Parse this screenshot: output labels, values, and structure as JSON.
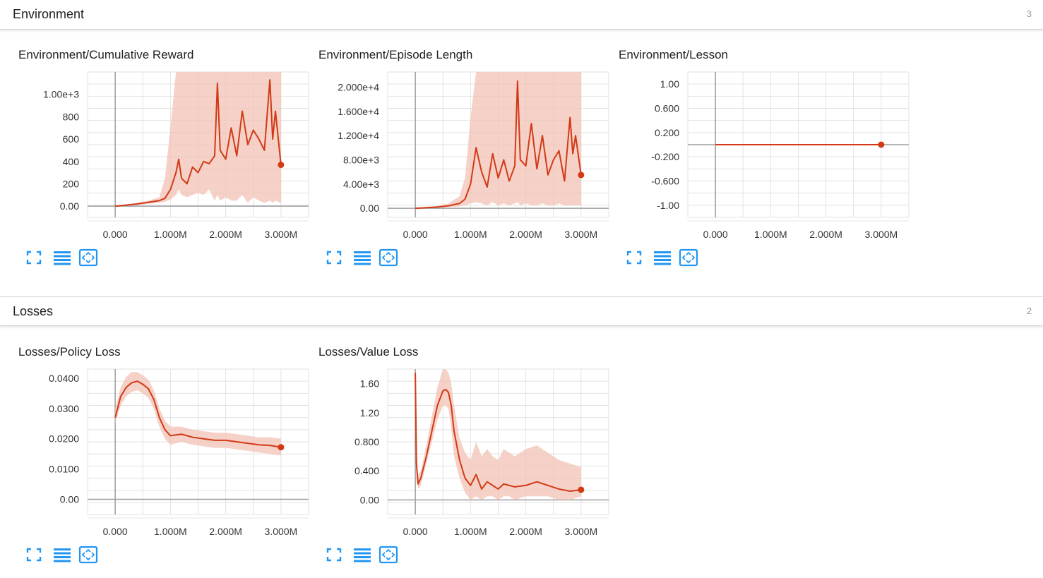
{
  "sections": [
    {
      "title": "Environment",
      "count": "3"
    },
    {
      "title": "Losses",
      "count": "2"
    }
  ],
  "colors": {
    "line": "#d23a16",
    "band": "#f2c2b4",
    "grid": "#e2e2e2",
    "axis": "#9e9e9e",
    "icon": "#2196f3"
  },
  "toolbar_icons": [
    "fullscreen-icon",
    "toggle-y-axis-log-icon",
    "fit-domain-icon"
  ],
  "cards": [
    {
      "title": "Environment/Cumulative Reward"
    },
    {
      "title": "Environment/Episode Length"
    },
    {
      "title": "Environment/Lesson"
    },
    {
      "title": "Losses/Policy Loss"
    },
    {
      "title": "Losses/Value Loss"
    }
  ],
  "chart_data": [
    {
      "type": "line",
      "title": "Environment/Cumulative Reward",
      "x_ticks": [
        "0.000",
        "1.000M",
        "2.000M",
        "3.000M"
      ],
      "y_ticks": [
        "0.00",
        "200",
        "400",
        "600",
        "800",
        "1.00e+3"
      ],
      "xlim": [
        -500000,
        3500000
      ],
      "ylim": [
        -100,
        1200
      ],
      "x": [
        0,
        200000,
        400000,
        600000,
        800000,
        900000,
        1000000,
        1100000,
        1150000,
        1200000,
        1300000,
        1400000,
        1500000,
        1600000,
        1700000,
        1800000,
        1850000,
        1900000,
        2000000,
        2100000,
        2200000,
        2300000,
        2400000,
        2500000,
        2600000,
        2700000,
        2800000,
        2850000,
        2900000,
        3000000
      ],
      "y": [
        0,
        10,
        20,
        35,
        50,
        70,
        150,
        300,
        420,
        250,
        200,
        350,
        300,
        400,
        380,
        450,
        1100,
        500,
        420,
        700,
        450,
        850,
        550,
        680,
        600,
        500,
        1130,
        600,
        850,
        370
      ],
      "upper": [
        0,
        15,
        30,
        50,
        80,
        250,
        700,
        1200,
        1200,
        1200,
        1200,
        1200,
        1200,
        1200,
        1200,
        1200,
        1200,
        1200,
        1200,
        1200,
        1200,
        1200,
        1200,
        1200,
        1200,
        1200,
        1200,
        1200,
        1200,
        1200
      ],
      "lower": [
        0,
        5,
        10,
        20,
        30,
        40,
        60,
        100,
        150,
        100,
        80,
        100,
        120,
        100,
        150,
        50,
        100,
        50,
        80,
        50,
        50,
        100,
        30,
        80,
        50,
        30,
        50,
        30,
        50,
        30
      ],
      "last_point": {
        "x": 3000000,
        "y": 370
      }
    },
    {
      "type": "line",
      "title": "Environment/Episode Length",
      "x_ticks": [
        "0.000",
        "1.000M",
        "2.000M",
        "3.000M"
      ],
      "y_ticks": [
        "0.00",
        "4.00e+3",
        "8.00e+3",
        "1.200e+4",
        "1.600e+4",
        "2.000e+4"
      ],
      "xlim": [
        -500000,
        3500000
      ],
      "ylim": [
        -1500,
        22500
      ],
      "x": [
        0,
        200000,
        400000,
        600000,
        800000,
        900000,
        1000000,
        1100000,
        1200000,
        1300000,
        1400000,
        1500000,
        1600000,
        1700000,
        1800000,
        1850000,
        1900000,
        2000000,
        2100000,
        2200000,
        2300000,
        2400000,
        2500000,
        2600000,
        2700000,
        2800000,
        2850000,
        2900000,
        3000000
      ],
      "y": [
        0,
        100,
        200,
        400,
        800,
        1500,
        4000,
        10000,
        6000,
        3500,
        9000,
        5000,
        8000,
        4500,
        7000,
        21000,
        8000,
        7000,
        14000,
        6500,
        12000,
        5500,
        8000,
        9500,
        4500,
        15000,
        9000,
        12000,
        5500
      ],
      "upper": [
        0,
        200,
        400,
        800,
        2000,
        5000,
        15000,
        22500,
        22500,
        22500,
        22500,
        22500,
        22500,
        22500,
        22500,
        22500,
        22500,
        22500,
        22500,
        22500,
        22500,
        22500,
        22500,
        22500,
        22500,
        22500,
        22500,
        22500,
        22500
      ],
      "lower": [
        0,
        50,
        100,
        200,
        300,
        500,
        800,
        1000,
        800,
        500,
        1000,
        500,
        800,
        500,
        800,
        1000,
        500,
        800,
        500,
        500,
        800,
        500,
        500,
        800,
        500,
        500,
        500,
        500,
        500
      ],
      "last_point": {
        "x": 3000000,
        "y": 5500
      }
    },
    {
      "type": "line",
      "title": "Environment/Lesson",
      "x_ticks": [
        "0.000",
        "1.000M",
        "2.000M",
        "3.000M"
      ],
      "y_ticks": [
        "-1.00",
        "-0.600",
        "-0.200",
        "0.200",
        "0.600",
        "1.00"
      ],
      "xlim": [
        -500000,
        3500000
      ],
      "ylim": [
        -1.2,
        1.2
      ],
      "x": [
        0,
        3000000
      ],
      "y": [
        0,
        0
      ],
      "upper": [
        0,
        0
      ],
      "lower": [
        0,
        0
      ],
      "last_point": {
        "x": 3000000,
        "y": 0
      }
    },
    {
      "type": "line",
      "title": "Losses/Policy Loss",
      "x_ticks": [
        "0.000",
        "1.000M",
        "2.000M",
        "3.000M"
      ],
      "y_ticks": [
        "0.00",
        "0.0100",
        "0.0200",
        "0.0300",
        "0.0400"
      ],
      "xlim": [
        -500000,
        3500000
      ],
      "ylim": [
        -0.005,
        0.043
      ],
      "x": [
        0,
        100000,
        200000,
        300000,
        400000,
        500000,
        600000,
        700000,
        800000,
        900000,
        1000000,
        1200000,
        1400000,
        1600000,
        1800000,
        2000000,
        2200000,
        2400000,
        2600000,
        2800000,
        3000000
      ],
      "y": [
        0.027,
        0.034,
        0.037,
        0.0385,
        0.039,
        0.038,
        0.0365,
        0.033,
        0.027,
        0.023,
        0.021,
        0.0215,
        0.0205,
        0.02,
        0.0195,
        0.0195,
        0.019,
        0.0185,
        0.018,
        0.0178,
        0.0172
      ],
      "upper": [
        0.03,
        0.037,
        0.0405,
        0.042,
        0.042,
        0.041,
        0.0395,
        0.036,
        0.03,
        0.026,
        0.024,
        0.024,
        0.023,
        0.0225,
        0.022,
        0.022,
        0.0215,
        0.021,
        0.0205,
        0.0205,
        0.02
      ],
      "lower": [
        0.025,
        0.031,
        0.034,
        0.0355,
        0.036,
        0.035,
        0.0335,
        0.03,
        0.024,
        0.02,
        0.018,
        0.019,
        0.018,
        0.0175,
        0.017,
        0.017,
        0.0165,
        0.016,
        0.0155,
        0.015,
        0.0145
      ],
      "last_point": {
        "x": 3000000,
        "y": 0.0172
      }
    },
    {
      "type": "line",
      "title": "Losses/Value Loss",
      "x_ticks": [
        "0.000",
        "1.000M",
        "2.000M",
        "3.000M"
      ],
      "y_ticks": [
        "0.00",
        "0.400",
        "0.800",
        "1.20",
        "1.60"
      ],
      "xlim": [
        -500000,
        3500000
      ],
      "ylim": [
        -0.2,
        1.8
      ],
      "x": [
        0,
        20000,
        50000,
        100000,
        200000,
        300000,
        400000,
        500000,
        550000,
        600000,
        650000,
        700000,
        800000,
        900000,
        1000000,
        1100000,
        1200000,
        1300000,
        1400000,
        1500000,
        1600000,
        1700000,
        1800000,
        2000000,
        2200000,
        2400000,
        2600000,
        2800000,
        3000000
      ],
      "y": [
        1.75,
        0.5,
        0.22,
        0.3,
        0.6,
        0.95,
        1.3,
        1.5,
        1.52,
        1.48,
        1.3,
        0.95,
        0.55,
        0.3,
        0.2,
        0.35,
        0.15,
        0.25,
        0.2,
        0.15,
        0.22,
        0.2,
        0.18,
        0.2,
        0.25,
        0.2,
        0.15,
        0.12,
        0.14
      ],
      "upper": [
        1.8,
        0.7,
        0.35,
        0.4,
        0.75,
        1.15,
        1.55,
        1.8,
        1.8,
        1.75,
        1.6,
        1.3,
        0.85,
        0.65,
        0.55,
        0.8,
        0.6,
        0.7,
        0.6,
        0.55,
        0.7,
        0.65,
        0.6,
        0.7,
        0.75,
        0.65,
        0.55,
        0.5,
        0.45
      ],
      "lower": [
        1.5,
        0.3,
        0.15,
        0.2,
        0.5,
        0.8,
        1.1,
        1.3,
        1.3,
        1.25,
        1.0,
        0.6,
        0.3,
        0.1,
        0.0,
        0.05,
        0.0,
        0.05,
        0.05,
        0.0,
        0.05,
        0.05,
        0.0,
        0.05,
        0.05,
        0.05,
        0.0,
        0.0,
        0.05
      ],
      "last_point": {
        "x": 3000000,
        "y": 0.14
      }
    }
  ]
}
